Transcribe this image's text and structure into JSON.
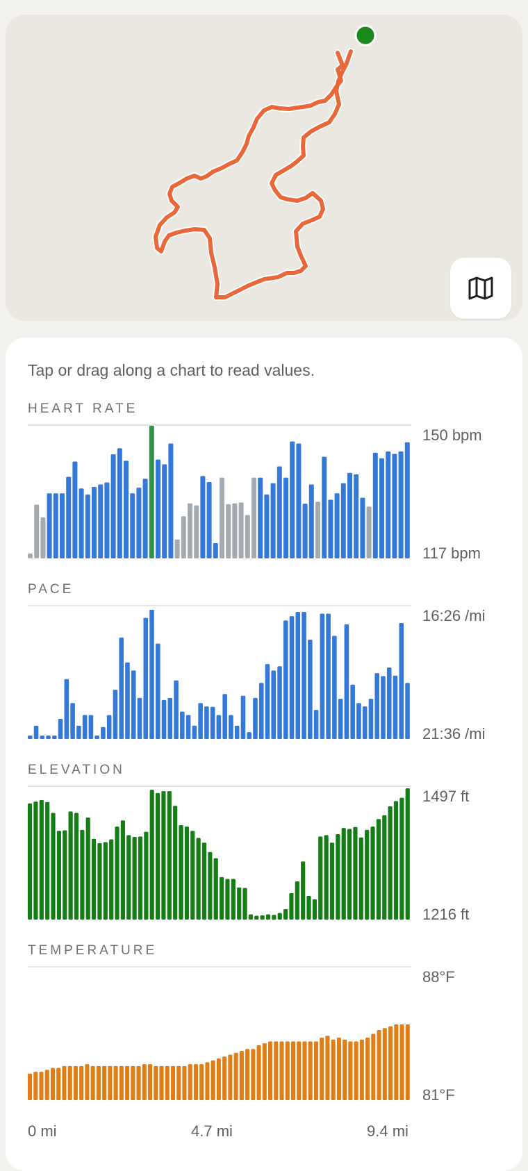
{
  "map": {
    "route_color": "#e8683a",
    "start_marker_color": "#1a8a1a",
    "map_button_icon": "map-icon"
  },
  "hint": "Tap or drag along a chart to read values.",
  "charts": [
    {
      "key": "heart_rate",
      "title": "HEART RATE",
      "top_label": "150 bpm",
      "bottom_label": "117 bpm",
      "color": "#3478d8",
      "muted_color": "#a4abb0",
      "selected_color": "#2e9448"
    },
    {
      "key": "pace",
      "title": "PACE",
      "top_label": "16:26 /mi",
      "bottom_label": "21:36 /mi",
      "color": "#3478d8"
    },
    {
      "key": "elevation",
      "title": "ELEVATION",
      "top_label": "1497 ft",
      "bottom_label": "1216 ft",
      "color": "#157d15"
    },
    {
      "key": "temperature",
      "title": "TEMPERATURE",
      "top_label": "88°F",
      "bottom_label": "81°F",
      "color": "#e07d14"
    }
  ],
  "x_axis": [
    "0 mi",
    "4.7 mi",
    "9.4 mi"
  ],
  "chart_data": [
    {
      "type": "bar",
      "title": "HEART RATE",
      "ylabel": "bpm",
      "ylim": [
        117,
        150
      ],
      "x_range": [
        "0 mi",
        "9.4 mi"
      ],
      "selected_index": 19,
      "muted_indices": [
        0,
        1,
        2,
        23,
        24,
        25,
        26,
        30,
        31,
        32,
        33,
        34,
        35,
        45,
        53
      ],
      "values": [
        118.2,
        130.4,
        127.2,
        133.2,
        133.2,
        133.2,
        137.3,
        141.1,
        134.4,
        132.9,
        134.8,
        135.4,
        135.9,
        142.9,
        144.4,
        141.3,
        133.2,
        134.6,
        136.8,
        150.0,
        141.6,
        140.4,
        145.6,
        121.7,
        127.5,
        130.7,
        130.2,
        137.5,
        136.0,
        120.8,
        137.1,
        130.5,
        130.7,
        130.9,
        127.8,
        137.1,
        137.1,
        132.9,
        135.7,
        139.9,
        137.1,
        146.1,
        145.6,
        130.6,
        135.4,
        131.1,
        142.3,
        131.6,
        133.2,
        135.7,
        138.3,
        137.9,
        132.1,
        129.9,
        143.3,
        141.9,
        143.6,
        143.0,
        143.6,
        145.9
      ]
    },
    {
      "type": "bar",
      "title": "PACE",
      "ylabel": "min/mi",
      "ylim": [
        "16:26",
        "21:36"
      ],
      "inverted": true,
      "x_range": [
        "0 mi",
        "9.4 mi"
      ],
      "values": [
        "16:26",
        "16:57",
        "16:32",
        "16:26",
        "16:26",
        "17:13",
        "18:46",
        "17:50",
        "16:57",
        "17:22",
        "17:22",
        "16:26",
        "16:54",
        "17:22",
        "18:21",
        "20:23",
        "19:25",
        "19:06",
        "18:02",
        "21:09",
        "21:28",
        "20:09",
        "17:57",
        "18:02",
        "18:43",
        "17:30",
        "17:22",
        "16:57",
        "17:50",
        "17:42",
        "17:41",
        "17:22",
        "18:11",
        "17:22",
        "16:57",
        "18:07",
        "16:42",
        "18:02",
        "18:37",
        "19:21",
        "19:06",
        "19:16",
        "21:03",
        "21:13",
        "21:23",
        "21:23",
        "20:18",
        "17:34",
        "21:19",
        "21:19",
        "20:27",
        "18:00",
        "20:54",
        "18:33",
        "17:50",
        "17:42",
        "18:00",
        "19:00",
        "18:53",
        "19:13",
        "18:54",
        "20:57",
        "18:37"
      ]
    },
    {
      "type": "bar",
      "title": "ELEVATION",
      "ylabel": "ft",
      "ylim": [
        1216,
        1497
      ],
      "x_range": [
        "0 mi",
        "9.4 mi"
      ],
      "values": [
        1462,
        1466,
        1469,
        1465,
        1442,
        1404,
        1405,
        1445,
        1442,
        1406,
        1432,
        1387,
        1378,
        1380,
        1386,
        1413,
        1426,
        1395,
        1391,
        1392,
        1402,
        1491,
        1484,
        1488,
        1488,
        1457,
        1416,
        1413,
        1404,
        1389,
        1379,
        1359,
        1346,
        1306,
        1302,
        1302,
        1284,
        1283,
        1227,
        1224,
        1225,
        1227,
        1226,
        1230,
        1238,
        1272,
        1297,
        1339,
        1266,
        1259,
        1392,
        1395,
        1379,
        1397,
        1410,
        1408,
        1412,
        1390,
        1406,
        1413,
        1429,
        1437,
        1456,
        1467,
        1474,
        1494
      ]
    },
    {
      "type": "bar",
      "title": "TEMPERATURE",
      "ylabel": "°F",
      "ylim": [
        81,
        88
      ],
      "x_range": [
        "0 mi",
        "9.4 mi"
      ],
      "values": [
        82.4,
        82.5,
        82.5,
        82.6,
        82.7,
        82.7,
        82.8,
        82.8,
        82.8,
        82.8,
        82.9,
        82.8,
        82.8,
        82.8,
        82.8,
        82.8,
        82.8,
        82.8,
        82.8,
        82.8,
        82.9,
        82.9,
        82.8,
        82.8,
        82.8,
        82.8,
        82.8,
        82.8,
        82.9,
        82.9,
        82.9,
        83.0,
        83.1,
        83.2,
        83.3,
        83.4,
        83.5,
        83.6,
        83.7,
        83.7,
        83.9,
        84.0,
        84.1,
        84.1,
        84.1,
        84.1,
        84.1,
        84.1,
        84.1,
        84.1,
        84.1,
        84.3,
        84.4,
        84.2,
        84.3,
        84.2,
        84.1,
        84.1,
        84.2,
        84.3,
        84.5,
        84.7,
        84.8,
        84.9,
        85.0,
        85.0,
        85.0
      ]
    }
  ]
}
